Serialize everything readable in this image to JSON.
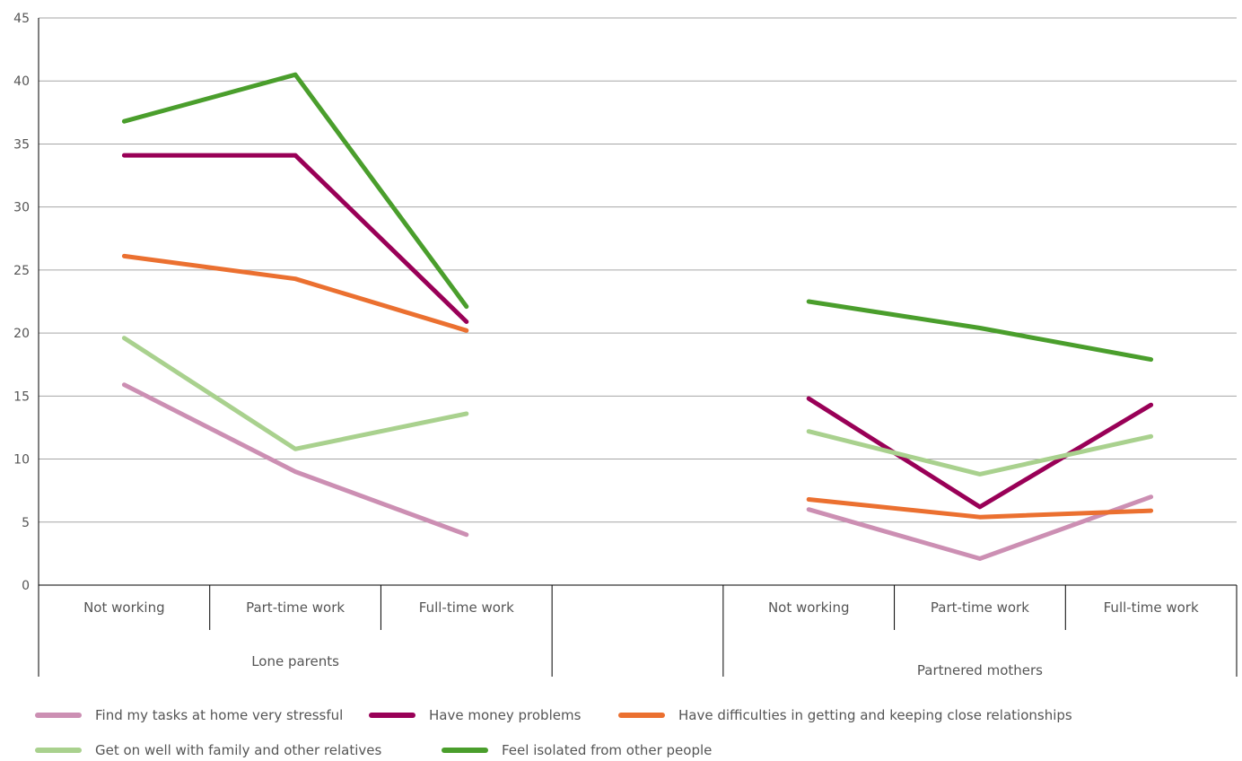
{
  "chart_data": {
    "type": "line",
    "title": "",
    "xlabel": "",
    "ylabel": "",
    "ylim": [
      0,
      45
    ],
    "yticks": [
      0,
      5,
      10,
      15,
      20,
      25,
      30,
      35,
      40,
      45
    ],
    "grid": true,
    "legend_position": "bottom",
    "groups": [
      {
        "name": "Lone parents",
        "categories": [
          "Not working",
          "Part-time work",
          "Full-time work"
        ]
      },
      {
        "name": "",
        "categories": [
          ""
        ]
      },
      {
        "name": "Partnered mothers",
        "categories": [
          "Not working",
          "Part-time work",
          "Full-time work"
        ]
      }
    ],
    "categories": [
      "Not working",
      "Part-time work",
      "Full-time work",
      "",
      "Not working",
      "Part-time work",
      "Full-time work"
    ],
    "series": [
      {
        "name": "Find my tasks at home very stressful",
        "color": "#cc8fb3",
        "values": [
          15.9,
          9.0,
          4.0,
          null,
          6.0,
          2.1,
          7.0
        ]
      },
      {
        "name": "Have money problems",
        "color": "#990057",
        "values": [
          34.1,
          34.1,
          20.9,
          null,
          14.8,
          6.2,
          14.3
        ]
      },
      {
        "name": "Have difficulties in getting and keeping close relationships",
        "color": "#eb7030",
        "values": [
          26.1,
          24.3,
          20.2,
          null,
          6.8,
          5.4,
          5.9
        ]
      },
      {
        "name": "Get on well with family and other relatives",
        "color": "#a9d18e",
        "values": [
          19.6,
          10.8,
          13.6,
          null,
          12.2,
          8.8,
          11.8
        ]
      },
      {
        "name": "Feel isolated from other people",
        "color": "#4a9e2c",
        "values": [
          36.8,
          40.5,
          22.1,
          null,
          22.5,
          20.4,
          17.9
        ]
      }
    ]
  }
}
